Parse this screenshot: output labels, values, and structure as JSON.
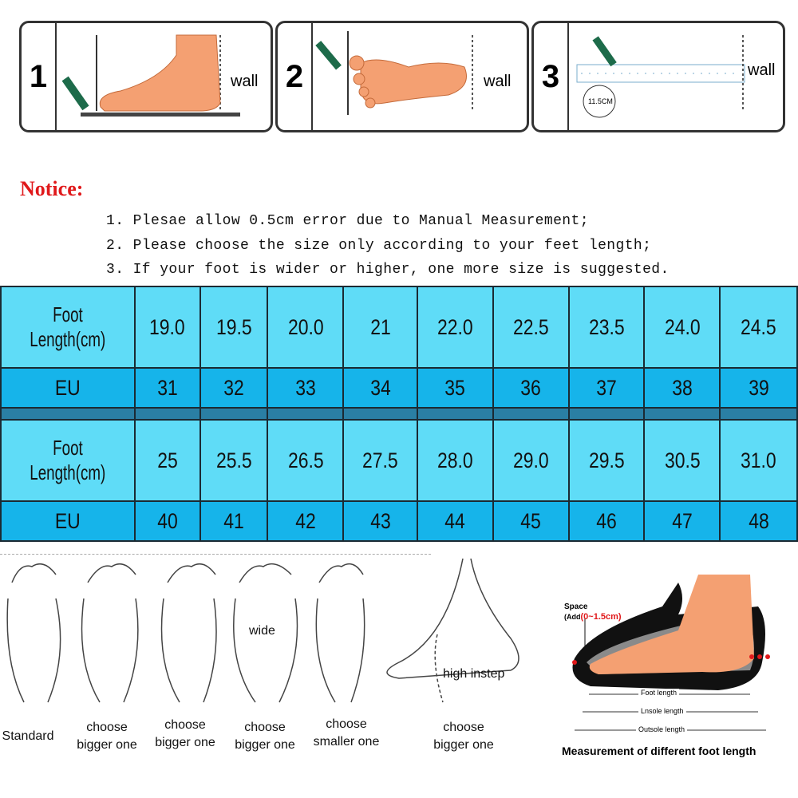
{
  "steps": [
    {
      "number": "1",
      "wall_label": "wall"
    },
    {
      "number": "2",
      "wall_label": "wall"
    },
    {
      "number": "3",
      "wall_label": "wall",
      "ruler_badge": "11.5CM"
    }
  ],
  "notice": {
    "title": "Notice:",
    "lines": [
      "1. Plesae allow 0.5cm error due to Manual Measurement;",
      "2. Please choose the size only according to your feet length;",
      "3. If your foot is wider or higher, one more size is suggested."
    ]
  },
  "size_table": {
    "foot_length_label_1": "Foot",
    "foot_length_label_2": "Length(cm)",
    "eu_label": "EU",
    "block1": {
      "foot_length": [
        "19.0",
        "19.5",
        "20.0",
        "21",
        "22.0",
        "22.5",
        "23.5",
        "24.0",
        "24.5"
      ],
      "eu": [
        "31",
        "32",
        "33",
        "34",
        "35",
        "36",
        "37",
        "38",
        "39"
      ]
    },
    "block2": {
      "foot_length": [
        "25",
        "25.5",
        "26.5",
        "27.5",
        "28.0",
        "29.0",
        "29.5",
        "30.5",
        "31.0"
      ],
      "eu": [
        "40",
        "41",
        "42",
        "43",
        "44",
        "45",
        "46",
        "47",
        "48"
      ]
    }
  },
  "foot_types": [
    {
      "caption": "Standard"
    },
    {
      "caption": "choose\nbigger one"
    },
    {
      "caption": "choose\nbigger one"
    },
    {
      "caption": "choose\nbigger one",
      "annotation": "wide"
    },
    {
      "caption": "choose\nsmaller one"
    },
    {
      "caption": "choose\nbigger one",
      "annotation": "high instep"
    }
  ],
  "measurement": {
    "space_label": "Space",
    "add_label": "(Add",
    "add_value": "(0~1.5cm)",
    "foot_length": "Foot length",
    "insole_length": "Lnsole length",
    "outsole_length": "Outsole length",
    "caption": "Measurement of different foot length"
  },
  "colors": {
    "length_row": "#5fdcf7",
    "eu_row": "#16b4ea",
    "separator": "#2a7fa4",
    "notice": "#e0191b",
    "skin": "#f4a072"
  }
}
